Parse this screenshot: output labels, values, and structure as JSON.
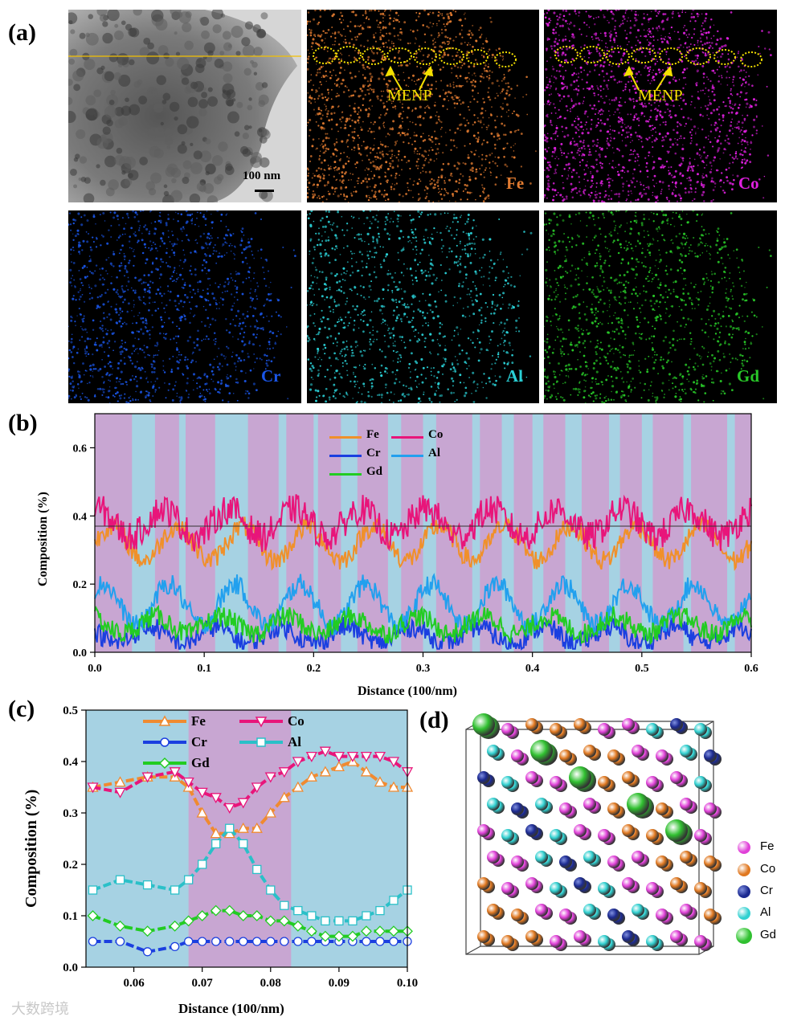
{
  "panel_labels": {
    "a": "(a)",
    "b": "(b)",
    "c": "(c)",
    "d": "(d)"
  },
  "panel_a": {
    "scale_bar": "100 nm",
    "annotation": "MENP",
    "maps": [
      {
        "element": "Fe",
        "color": "#e07a30"
      },
      {
        "element": "Co",
        "color": "#e020e0"
      },
      {
        "element": "Cr",
        "color": "#1a55e6"
      },
      {
        "element": "Al",
        "color": "#2ad0d6"
      },
      {
        "element": "Gd",
        "color": "#28c828"
      }
    ]
  },
  "panel_b": {
    "chart_data": {
      "type": "line",
      "xlabel": "Distance (100/nm)",
      "ylabel": "Composition (%)",
      "xlim": [
        0.0,
        0.6
      ],
      "ylim": [
        0.0,
        0.7
      ],
      "xticks": [
        "0.0",
        "0.1",
        "0.2",
        "0.3",
        "0.4",
        "0.5",
        "0.6"
      ],
      "yticks": [
        "0.0",
        "0.2",
        "0.4",
        "0.6"
      ],
      "reference_line": 0.37,
      "series": [
        {
          "name": "Fe",
          "color": "#f0902a",
          "mean": 0.32
        },
        {
          "name": "Co",
          "color": "#e8157a",
          "mean": 0.38
        },
        {
          "name": "Cr",
          "color": "#1b3fe0",
          "mean": 0.05
        },
        {
          "name": "Al",
          "color": "#22a0ee",
          "mean": 0.14
        },
        {
          "name": "Gd",
          "color": "#22cc22",
          "mean": 0.08
        }
      ]
    }
  },
  "panel_c": {
    "chart_data": {
      "type": "line",
      "xlabel": "Distance (100/nm)",
      "ylabel": "Composition (%)",
      "xlim": [
        0.053,
        0.1
      ],
      "ylim": [
        0.0,
        0.5
      ],
      "xticks": [
        "0.06",
        "0.07",
        "0.08",
        "0.09",
        "0.10"
      ],
      "yticks": [
        "0.0",
        "0.1",
        "0.2",
        "0.3",
        "0.4",
        "0.5"
      ],
      "shaded_region": [
        0.068,
        0.083
      ],
      "x": [
        0.054,
        0.058,
        0.062,
        0.066,
        0.068,
        0.07,
        0.072,
        0.074,
        0.076,
        0.078,
        0.08,
        0.082,
        0.084,
        0.086,
        0.088,
        0.09,
        0.092,
        0.094,
        0.096,
        0.098,
        0.1
      ],
      "series": [
        {
          "name": "Fe",
          "color": "#f08a30",
          "values": [
            0.35,
            0.36,
            0.37,
            0.37,
            0.35,
            0.3,
            0.26,
            0.26,
            0.27,
            0.27,
            0.3,
            0.33,
            0.35,
            0.37,
            0.38,
            0.39,
            0.4,
            0.38,
            0.36,
            0.35,
            0.35
          ]
        },
        {
          "name": "Co",
          "color": "#e8157a",
          "values": [
            0.35,
            0.34,
            0.37,
            0.38,
            0.36,
            0.34,
            0.33,
            0.31,
            0.32,
            0.35,
            0.37,
            0.38,
            0.4,
            0.41,
            0.42,
            0.41,
            0.41,
            0.41,
            0.41,
            0.4,
            0.38
          ]
        },
        {
          "name": "Cr",
          "color": "#1b3fe0",
          "values": [
            0.05,
            0.05,
            0.03,
            0.04,
            0.05,
            0.05,
            0.05,
            0.05,
            0.05,
            0.05,
            0.05,
            0.05,
            0.05,
            0.05,
            0.05,
            0.05,
            0.05,
            0.05,
            0.05,
            0.05,
            0.05
          ]
        },
        {
          "name": "Al",
          "color": "#2ac0c8",
          "values": [
            0.15,
            0.17,
            0.16,
            0.15,
            0.17,
            0.2,
            0.24,
            0.27,
            0.24,
            0.19,
            0.15,
            0.12,
            0.11,
            0.1,
            0.09,
            0.09,
            0.09,
            0.1,
            0.11,
            0.13,
            0.15
          ]
        },
        {
          "name": "Gd",
          "color": "#22cc22",
          "values": [
            0.1,
            0.08,
            0.07,
            0.08,
            0.09,
            0.1,
            0.11,
            0.11,
            0.1,
            0.1,
            0.09,
            0.09,
            0.08,
            0.07,
            0.06,
            0.06,
            0.06,
            0.07,
            0.07,
            0.07,
            0.07
          ]
        }
      ]
    }
  },
  "panel_d": {
    "legend": [
      {
        "element": "Fe",
        "color": "#e040d8"
      },
      {
        "element": "Co",
        "color": "#e07820"
      },
      {
        "element": "Cr",
        "color": "#1c2a90"
      },
      {
        "element": "Al",
        "color": "#30d0d0"
      },
      {
        "element": "Gd",
        "color": "#30c030"
      }
    ]
  },
  "watermark": "大数跨境"
}
